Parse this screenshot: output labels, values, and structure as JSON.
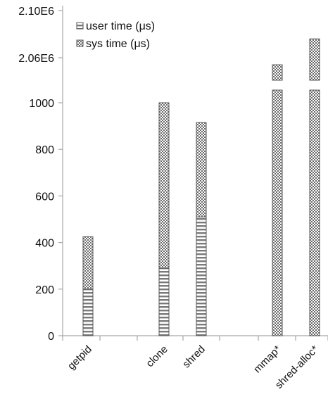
{
  "chart_data": {
    "type": "bar",
    "stacked": true,
    "broken_y_axis": true,
    "categories": [
      "getpid",
      "",
      "clone",
      "shred",
      "",
      "mmap*",
      "shred-alloc*"
    ],
    "y_ticks_lower": [
      "0",
      "200",
      "400",
      "600",
      "800",
      "1000"
    ],
    "y_ticks_upper": [
      "2.06E6",
      "2.10E6"
    ],
    "ylim_lower": [
      0,
      1050
    ],
    "ylim_upper": [
      2040000,
      2100000
    ],
    "grid": false,
    "legend_position": "top-left",
    "series": [
      {
        "name": "user time (μs)",
        "pattern": "horizontal-stripes",
        "values": [
          200,
          null,
          290,
          510,
          null,
          0,
          0
        ]
      },
      {
        "name": "sys time (μs)",
        "pattern": "checkered",
        "values": [
          225,
          null,
          710,
          405,
          null,
          2054000,
          2076000
        ]
      }
    ],
    "totals": [
      425,
      null,
      1000,
      915,
      null,
      2054000,
      2076000
    ]
  },
  "colors": {
    "axis": "#a6a6a6",
    "bar_border": "#555555",
    "stripe": "#777777",
    "check": "#6a6a6a",
    "text": "#111111"
  }
}
